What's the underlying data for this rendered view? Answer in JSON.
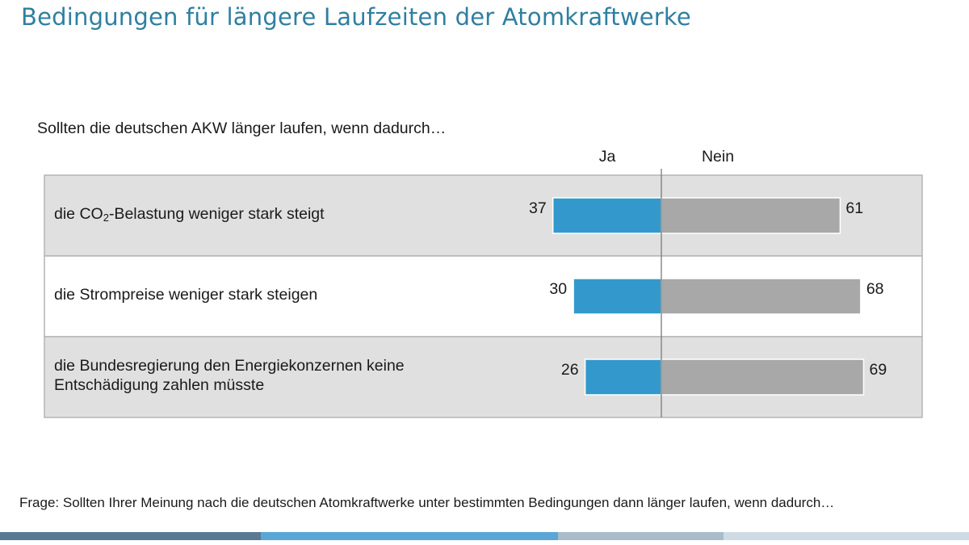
{
  "page": {
    "title": "Bedingungen für längere Laufzeiten der Atomkraftwerke",
    "footnote": "Frage: Sollten Ihrer Meinung nach die deutschen Atomkraftwerke unter bestimmten Bedingungen dann länger laufen, wenn dadurch…"
  },
  "colors": {
    "title": "#2f7fa0",
    "ja_bar": "#3399cc",
    "nein_bar": "#a8a8a8",
    "row_shaded": "#e0e0e0",
    "row_plain": "#ffffff",
    "border": "#b4b4b4",
    "divider": "#7a7a7a"
  },
  "chart_data": {
    "type": "bar",
    "orientation": "horizontal-diverging",
    "title": "Sollten die deutschen AKW länger laufen, wenn dadurch…",
    "series_names": [
      "Ja",
      "Nein"
    ],
    "categories": [
      {
        "prefix": "die CO",
        "subscript": "2",
        "suffix": "-Belastung weniger stark steigt"
      },
      {
        "prefix": "die Strompreise weniger stark steigen",
        "subscript": "",
        "suffix": ""
      },
      {
        "prefix": "die Bundesregierung den Energiekonzernen keine Entschädigung zahlen müsste",
        "subscript": "",
        "suffix": ""
      }
    ],
    "series": [
      {
        "name": "Ja",
        "values": [
          37,
          30,
          26
        ]
      },
      {
        "name": "Nein",
        "values": [
          61,
          68,
          69
        ]
      }
    ],
    "xlim": [
      0,
      100
    ],
    "grid": false
  },
  "footer_stripe": [
    "#5a7a92",
    "#5aa6d6",
    "#a9bccb",
    "#cfdbe4"
  ]
}
